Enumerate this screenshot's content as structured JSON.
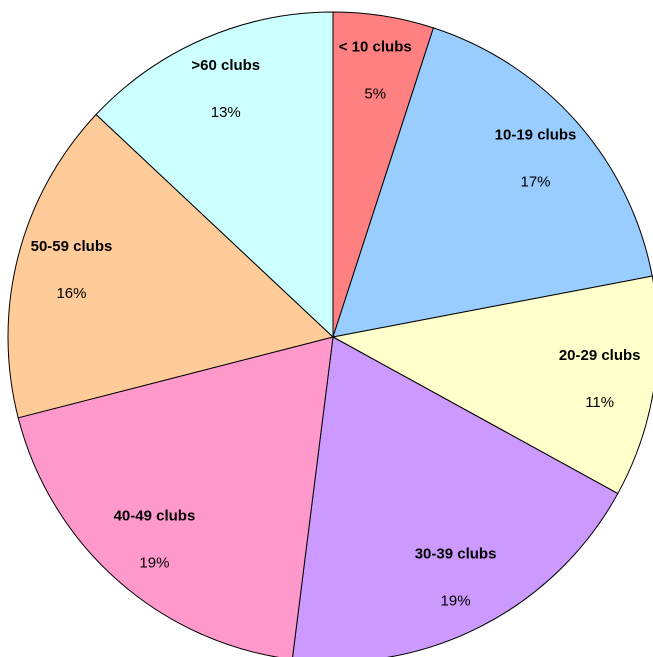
{
  "chart_data": {
    "type": "pie",
    "categories": [
      "< 10 clubs",
      "10-19 clubs",
      "20-29 clubs",
      "30-39 clubs",
      "40-49 clubs",
      "50-59 clubs",
      ">60 clubs"
    ],
    "values": [
      5,
      17,
      11,
      19,
      19,
      16,
      13
    ],
    "value_labels": [
      "5%",
      "17%",
      "11%",
      "19%",
      "19%",
      "16%",
      "13%"
    ],
    "colors": [
      "#ff8080",
      "#99ccff",
      "#ffffcc",
      "#cc99ff",
      "#ff99cc",
      "#ffcc99",
      "#ccffff"
    ]
  }
}
